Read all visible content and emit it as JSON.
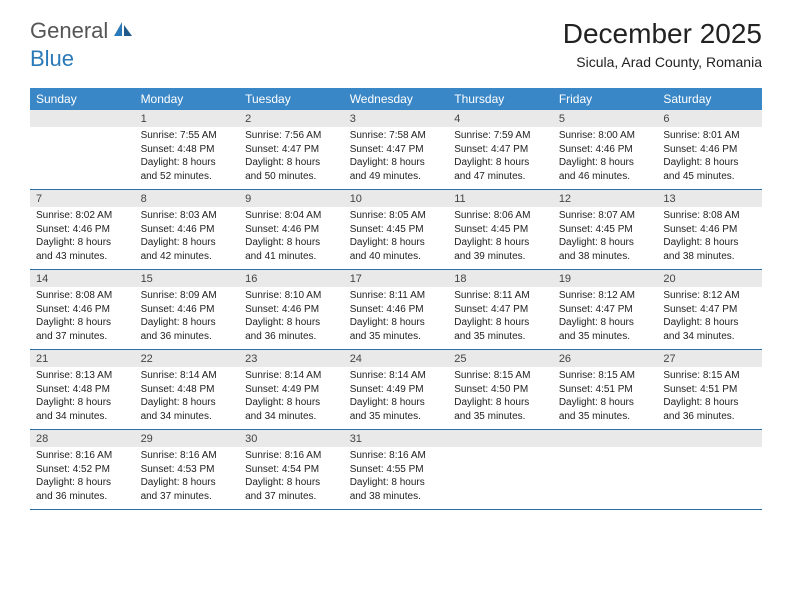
{
  "logo": {
    "general": "General",
    "blue": "Blue"
  },
  "title": "December 2025",
  "location": "Sicula, Arad County, Romania",
  "weekday_labels": [
    "Sunday",
    "Monday",
    "Tuesday",
    "Wednesday",
    "Thursday",
    "Friday",
    "Saturday"
  ],
  "colors": {
    "header_bg": "#3a87c7",
    "header_text": "#ffffff",
    "daynum_bg": "#e9e9e9",
    "rule": "#2a6fa5",
    "logo_blue": "#2a7ab9",
    "logo_gray": "#555555"
  },
  "weeks": [
    {
      "nums": [
        "",
        "1",
        "2",
        "3",
        "4",
        "5",
        "6"
      ],
      "cells": [
        {
          "empty": true
        },
        {
          "sunrise": "Sunrise: 7:55 AM",
          "sunset": "Sunset: 4:48 PM",
          "day1": "Daylight: 8 hours",
          "day2": "and 52 minutes."
        },
        {
          "sunrise": "Sunrise: 7:56 AM",
          "sunset": "Sunset: 4:47 PM",
          "day1": "Daylight: 8 hours",
          "day2": "and 50 minutes."
        },
        {
          "sunrise": "Sunrise: 7:58 AM",
          "sunset": "Sunset: 4:47 PM",
          "day1": "Daylight: 8 hours",
          "day2": "and 49 minutes."
        },
        {
          "sunrise": "Sunrise: 7:59 AM",
          "sunset": "Sunset: 4:47 PM",
          "day1": "Daylight: 8 hours",
          "day2": "and 47 minutes."
        },
        {
          "sunrise": "Sunrise: 8:00 AM",
          "sunset": "Sunset: 4:46 PM",
          "day1": "Daylight: 8 hours",
          "day2": "and 46 minutes."
        },
        {
          "sunrise": "Sunrise: 8:01 AM",
          "sunset": "Sunset: 4:46 PM",
          "day1": "Daylight: 8 hours",
          "day2": "and 45 minutes."
        }
      ]
    },
    {
      "nums": [
        "7",
        "8",
        "9",
        "10",
        "11",
        "12",
        "13"
      ],
      "cells": [
        {
          "sunrise": "Sunrise: 8:02 AM",
          "sunset": "Sunset: 4:46 PM",
          "day1": "Daylight: 8 hours",
          "day2": "and 43 minutes."
        },
        {
          "sunrise": "Sunrise: 8:03 AM",
          "sunset": "Sunset: 4:46 PM",
          "day1": "Daylight: 8 hours",
          "day2": "and 42 minutes."
        },
        {
          "sunrise": "Sunrise: 8:04 AM",
          "sunset": "Sunset: 4:46 PM",
          "day1": "Daylight: 8 hours",
          "day2": "and 41 minutes."
        },
        {
          "sunrise": "Sunrise: 8:05 AM",
          "sunset": "Sunset: 4:45 PM",
          "day1": "Daylight: 8 hours",
          "day2": "and 40 minutes."
        },
        {
          "sunrise": "Sunrise: 8:06 AM",
          "sunset": "Sunset: 4:45 PM",
          "day1": "Daylight: 8 hours",
          "day2": "and 39 minutes."
        },
        {
          "sunrise": "Sunrise: 8:07 AM",
          "sunset": "Sunset: 4:45 PM",
          "day1": "Daylight: 8 hours",
          "day2": "and 38 minutes."
        },
        {
          "sunrise": "Sunrise: 8:08 AM",
          "sunset": "Sunset: 4:46 PM",
          "day1": "Daylight: 8 hours",
          "day2": "and 38 minutes."
        }
      ]
    },
    {
      "nums": [
        "14",
        "15",
        "16",
        "17",
        "18",
        "19",
        "20"
      ],
      "cells": [
        {
          "sunrise": "Sunrise: 8:08 AM",
          "sunset": "Sunset: 4:46 PM",
          "day1": "Daylight: 8 hours",
          "day2": "and 37 minutes."
        },
        {
          "sunrise": "Sunrise: 8:09 AM",
          "sunset": "Sunset: 4:46 PM",
          "day1": "Daylight: 8 hours",
          "day2": "and 36 minutes."
        },
        {
          "sunrise": "Sunrise: 8:10 AM",
          "sunset": "Sunset: 4:46 PM",
          "day1": "Daylight: 8 hours",
          "day2": "and 36 minutes."
        },
        {
          "sunrise": "Sunrise: 8:11 AM",
          "sunset": "Sunset: 4:46 PM",
          "day1": "Daylight: 8 hours",
          "day2": "and 35 minutes."
        },
        {
          "sunrise": "Sunrise: 8:11 AM",
          "sunset": "Sunset: 4:47 PM",
          "day1": "Daylight: 8 hours",
          "day2": "and 35 minutes."
        },
        {
          "sunrise": "Sunrise: 8:12 AM",
          "sunset": "Sunset: 4:47 PM",
          "day1": "Daylight: 8 hours",
          "day2": "and 35 minutes."
        },
        {
          "sunrise": "Sunrise: 8:12 AM",
          "sunset": "Sunset: 4:47 PM",
          "day1": "Daylight: 8 hours",
          "day2": "and 34 minutes."
        }
      ]
    },
    {
      "nums": [
        "21",
        "22",
        "23",
        "24",
        "25",
        "26",
        "27"
      ],
      "cells": [
        {
          "sunrise": "Sunrise: 8:13 AM",
          "sunset": "Sunset: 4:48 PM",
          "day1": "Daylight: 8 hours",
          "day2": "and 34 minutes."
        },
        {
          "sunrise": "Sunrise: 8:14 AM",
          "sunset": "Sunset: 4:48 PM",
          "day1": "Daylight: 8 hours",
          "day2": "and 34 minutes."
        },
        {
          "sunrise": "Sunrise: 8:14 AM",
          "sunset": "Sunset: 4:49 PM",
          "day1": "Daylight: 8 hours",
          "day2": "and 34 minutes."
        },
        {
          "sunrise": "Sunrise: 8:14 AM",
          "sunset": "Sunset: 4:49 PM",
          "day1": "Daylight: 8 hours",
          "day2": "and 35 minutes."
        },
        {
          "sunrise": "Sunrise: 8:15 AM",
          "sunset": "Sunset: 4:50 PM",
          "day1": "Daylight: 8 hours",
          "day2": "and 35 minutes."
        },
        {
          "sunrise": "Sunrise: 8:15 AM",
          "sunset": "Sunset: 4:51 PM",
          "day1": "Daylight: 8 hours",
          "day2": "and 35 minutes."
        },
        {
          "sunrise": "Sunrise: 8:15 AM",
          "sunset": "Sunset: 4:51 PM",
          "day1": "Daylight: 8 hours",
          "day2": "and 36 minutes."
        }
      ]
    },
    {
      "nums": [
        "28",
        "29",
        "30",
        "31",
        "",
        "",
        ""
      ],
      "cells": [
        {
          "sunrise": "Sunrise: 8:16 AM",
          "sunset": "Sunset: 4:52 PM",
          "day1": "Daylight: 8 hours",
          "day2": "and 36 minutes."
        },
        {
          "sunrise": "Sunrise: 8:16 AM",
          "sunset": "Sunset: 4:53 PM",
          "day1": "Daylight: 8 hours",
          "day2": "and 37 minutes."
        },
        {
          "sunrise": "Sunrise: 8:16 AM",
          "sunset": "Sunset: 4:54 PM",
          "day1": "Daylight: 8 hours",
          "day2": "and 37 minutes."
        },
        {
          "sunrise": "Sunrise: 8:16 AM",
          "sunset": "Sunset: 4:55 PM",
          "day1": "Daylight: 8 hours",
          "day2": "and 38 minutes."
        },
        {
          "empty": true
        },
        {
          "empty": true
        },
        {
          "empty": true
        }
      ]
    }
  ]
}
